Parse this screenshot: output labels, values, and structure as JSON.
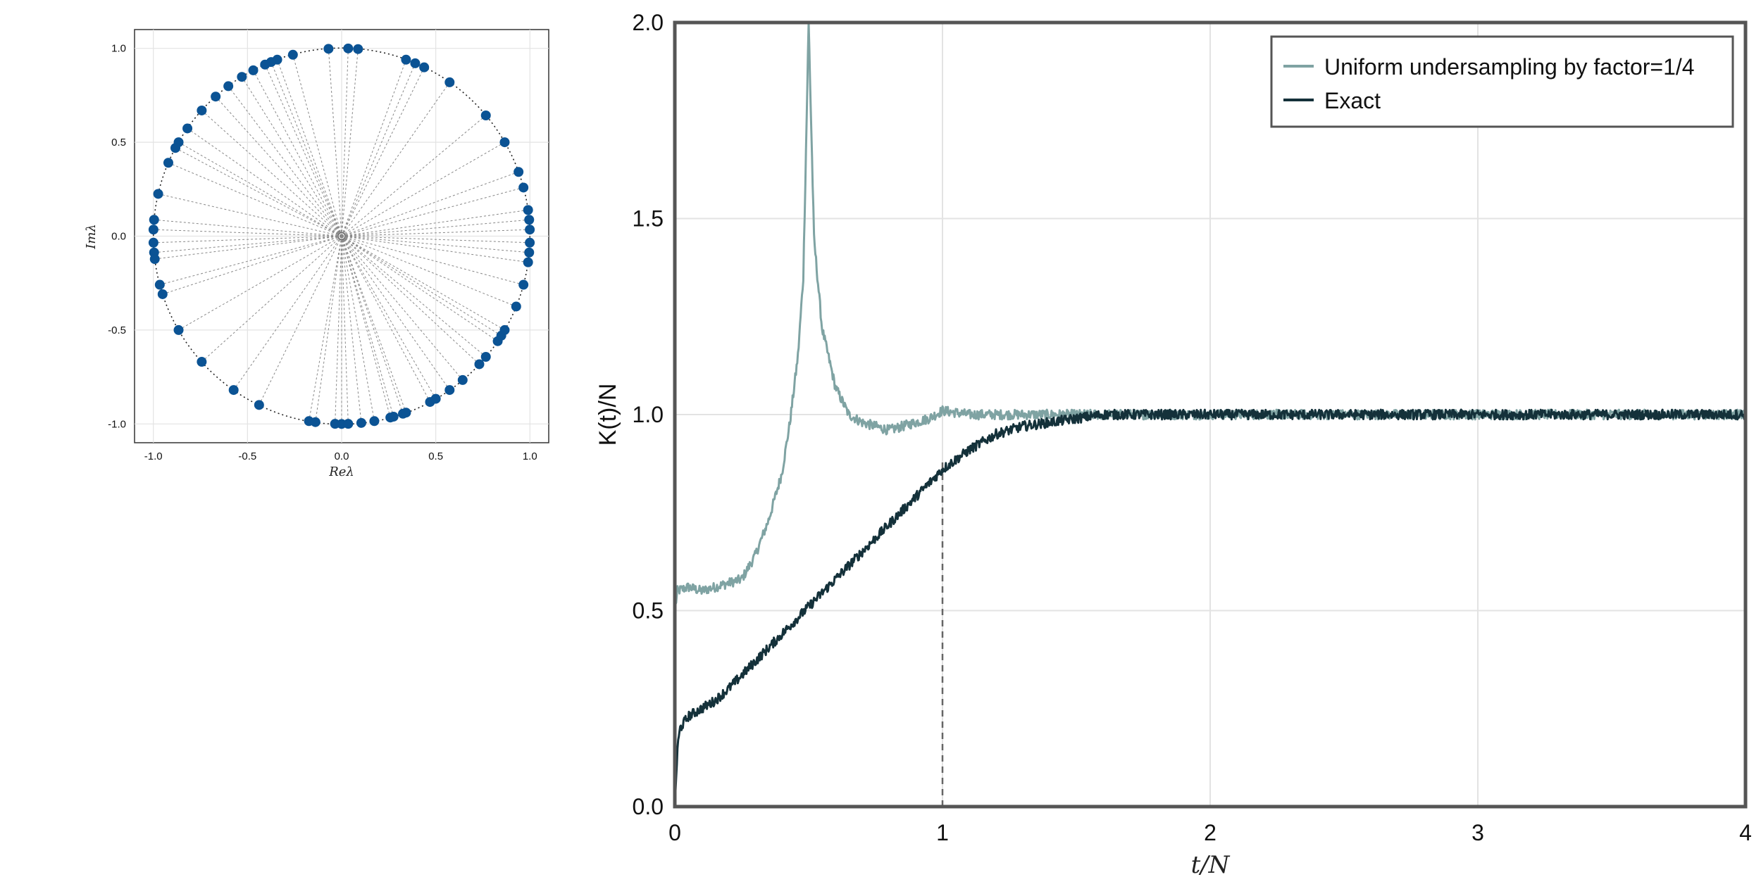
{
  "colors": {
    "points": "#0b5394",
    "exact": "#14313a",
    "undersampled": "#7fa3a3",
    "grid": "#e3e3e3",
    "frame": "#555555"
  },
  "chart_data": [
    {
      "type": "scatter",
      "xlabel": "Reλ",
      "ylabel": "Imλ",
      "xlim": [
        -1.1,
        1.1
      ],
      "ylim": [
        -1.1,
        1.1
      ],
      "grid": true,
      "x_ticks": [
        "-1.0",
        "-0.5",
        "0.0",
        "0.5",
        "1.0"
      ],
      "y_ticks": [
        "1.0",
        "0.5",
        "0.0",
        "-0.5",
        "-1.0"
      ],
      "unit_circle": true,
      "rays_to_origin": true,
      "angles_deg": [
        8,
        15,
        20,
        30,
        40,
        55,
        64,
        67,
        70,
        85,
        88,
        94,
        105,
        110,
        112,
        114,
        118,
        122,
        127,
        132,
        138,
        145,
        150,
        152,
        157,
        167,
        175,
        178,
        182,
        185,
        187,
        195,
        198,
        210,
        222,
        235,
        244,
        260,
        262,
        268,
        270,
        272,
        276,
        280,
        285,
        286,
        289,
        290,
        298,
        300,
        305,
        310,
        317,
        320,
        326,
        328,
        330,
        338,
        345,
        352,
        355,
        358,
        2,
        5
      ]
    },
    {
      "type": "line",
      "xlabel": "t/N",
      "ylabel": "K(t)/N",
      "xlim": [
        0,
        4
      ],
      "ylim": [
        0,
        2
      ],
      "grid": true,
      "legend": "top-right",
      "x_ticks": [
        "0",
        "1",
        "2",
        "3",
        "4"
      ],
      "y_ticks": [
        "0.0",
        "0.5",
        "1.0",
        "1.5",
        "2.0"
      ],
      "vline_x": 1,
      "series": [
        {
          "name": "Uniform undersampling by factor=1/4",
          "x": [
            0,
            0.01,
            0.05,
            0.1,
            0.2,
            0.25,
            0.3,
            0.35,
            0.4,
            0.43,
            0.46,
            0.48,
            0.5,
            0.52,
            0.55,
            0.6,
            0.65,
            0.7,
            0.75,
            0.8,
            0.85,
            0.9,
            0.95,
            1.0,
            1.1,
            1.2,
            1.5,
            2.0,
            2.5,
            3.0,
            3.5,
            4.0
          ],
          "y": [
            0.5,
            0.55,
            0.56,
            0.55,
            0.57,
            0.58,
            0.64,
            0.73,
            0.85,
            0.98,
            1.15,
            1.35,
            2.0,
            1.45,
            1.22,
            1.07,
            1.0,
            0.98,
            0.97,
            0.96,
            0.97,
            0.98,
            0.99,
            1.01,
            1.0,
            1.0,
            1.0,
            1.0,
            1.0,
            1.0,
            1.0,
            1.0
          ]
        },
        {
          "name": "Exact",
          "x": [
            0,
            0.01,
            0.02,
            0.05,
            0.1,
            0.15,
            0.2,
            0.3,
            0.4,
            0.5,
            0.6,
            0.7,
            0.8,
            0.9,
            1.0,
            1.1,
            1.2,
            1.3,
            1.4,
            1.5,
            1.6,
            2.0,
            2.5,
            3.0,
            3.5,
            4.0
          ],
          "y": [
            0.0,
            0.15,
            0.2,
            0.23,
            0.25,
            0.27,
            0.3,
            0.37,
            0.44,
            0.51,
            0.58,
            0.65,
            0.72,
            0.79,
            0.86,
            0.91,
            0.95,
            0.97,
            0.98,
            0.99,
            1.0,
            1.0,
            1.0,
            1.0,
            1.0,
            1.0
          ]
        }
      ]
    }
  ]
}
